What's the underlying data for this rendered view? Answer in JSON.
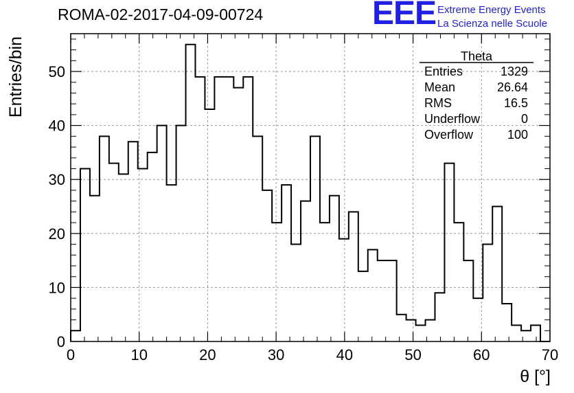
{
  "header": {
    "run_title": "ROMA-02-2017-04-09-00724"
  },
  "logo": {
    "mark": "EEE",
    "line1": "Extreme Energy Events",
    "line2": "La Scienza nelle Scuole",
    "color": "#1f1fe6"
  },
  "stats_box": {
    "title": "Theta",
    "rows": [
      {
        "label": "Entries",
        "value": "1329"
      },
      {
        "label": "Mean",
        "value": "26.64"
      },
      {
        "label": "RMS",
        "value": "16.5"
      },
      {
        "label": "Underflow",
        "value": "0"
      },
      {
        "label": "Overflow",
        "value": "100"
      }
    ]
  },
  "chart_data": {
    "type": "histogram",
    "title": "ROMA-02-2017-04-09-00724",
    "xlabel": "θ [°]",
    "ylabel": "Entries/bin",
    "xlim": [
      0,
      70
    ],
    "ylim": [
      0,
      57
    ],
    "x_ticks": [
      0,
      10,
      20,
      30,
      40,
      50,
      60,
      70
    ],
    "y_ticks": [
      0,
      10,
      20,
      30,
      40,
      50
    ],
    "grid": true,
    "bin_width": 1.4,
    "values": [
      2,
      32,
      27,
      38,
      33,
      31,
      37,
      32,
      35,
      40,
      29,
      40,
      55,
      49,
      43,
      49,
      49,
      47,
      49,
      38,
      28,
      22,
      29,
      18,
      26,
      38,
      22,
      27,
      19,
      24,
      13,
      17,
      15,
      15,
      5,
      4,
      3,
      4,
      9,
      33,
      22,
      15,
      8,
      18,
      25,
      7,
      3,
      2,
      3,
      0
    ],
    "line_color": "#000000",
    "grid_color": "#9a9a9a"
  }
}
